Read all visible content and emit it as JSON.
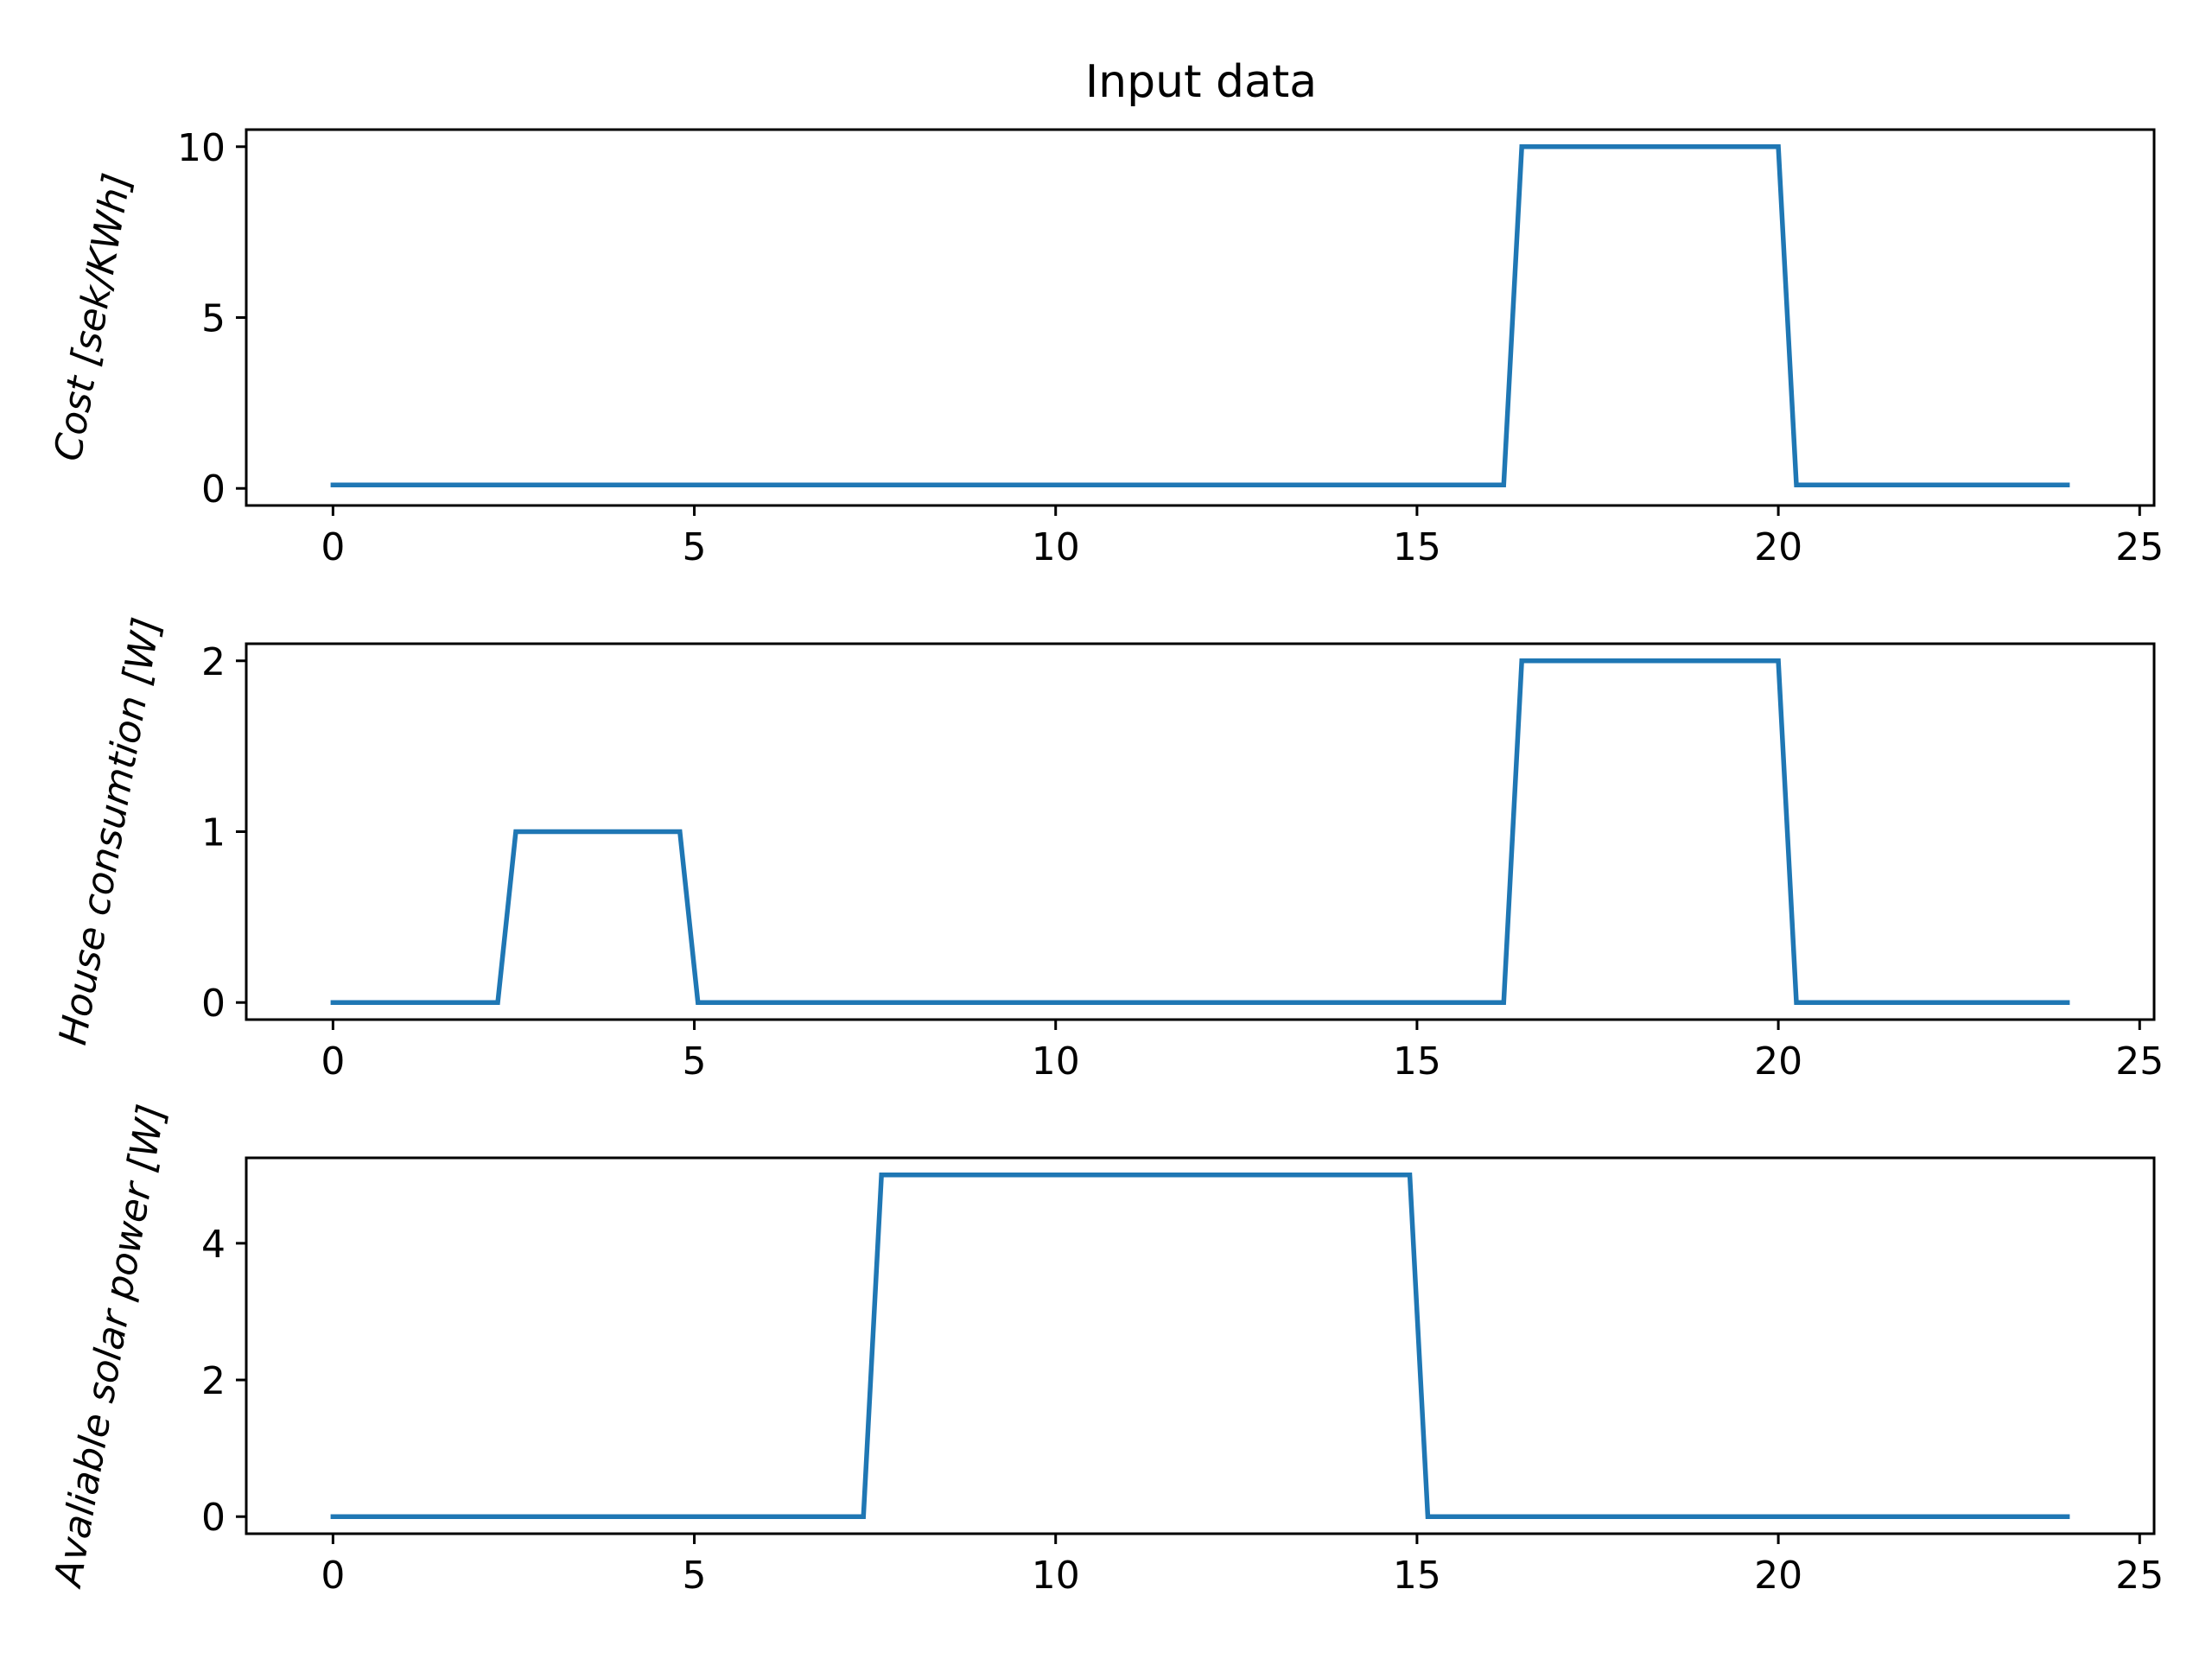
{
  "figure": {
    "title": "Input data",
    "line_color": "#1f77b4"
  },
  "chart_data": [
    {
      "type": "line",
      "title": "Input data",
      "xlabel": "",
      "ylabel": "Cost [sek/KWh]",
      "xlim": [
        -1.2,
        25.2
      ],
      "ylim": [
        -0.5,
        10.5
      ],
      "xticks": [
        0,
        5,
        10,
        15,
        20,
        25
      ],
      "yticks": [
        0,
        5,
        10
      ],
      "grid": false,
      "series": [
        {
          "x": [
            0,
            16.2,
            16.45,
            20.0,
            20.25,
            24.0
          ],
          "y": [
            0.1,
            0.1,
            10,
            10,
            0.1,
            0.1
          ]
        }
      ]
    },
    {
      "type": "line",
      "title": "",
      "xlabel": "",
      "ylabel": "House consumtion [W]",
      "xlim": [
        -1.2,
        25.2
      ],
      "ylim": [
        -0.1,
        2.1
      ],
      "xticks": [
        0,
        5,
        10,
        15,
        20,
        25
      ],
      "yticks": [
        0,
        1,
        2
      ],
      "grid": false,
      "series": [
        {
          "x": [
            0,
            2.28,
            2.53,
            4.8,
            5.05,
            16.2,
            16.45,
            20.0,
            20.25,
            24.0
          ],
          "y": [
            0,
            0,
            1,
            1,
            0,
            0,
            2,
            2,
            0,
            0
          ]
        }
      ]
    },
    {
      "type": "line",
      "title": "",
      "xlabel": "",
      "ylabel": "Avaliable solar power [W]",
      "xlim": [
        -1.2,
        25.2
      ],
      "ylim": [
        -0.25,
        5.25
      ],
      "xticks": [
        0,
        5,
        10,
        15,
        20,
        25
      ],
      "yticks": [
        0,
        2,
        4
      ],
      "grid": false,
      "series": [
        {
          "x": [
            0,
            7.34,
            7.59,
            14.9,
            15.15,
            24.0
          ],
          "y": [
            0,
            0,
            5,
            5,
            0,
            0
          ]
        }
      ]
    }
  ]
}
